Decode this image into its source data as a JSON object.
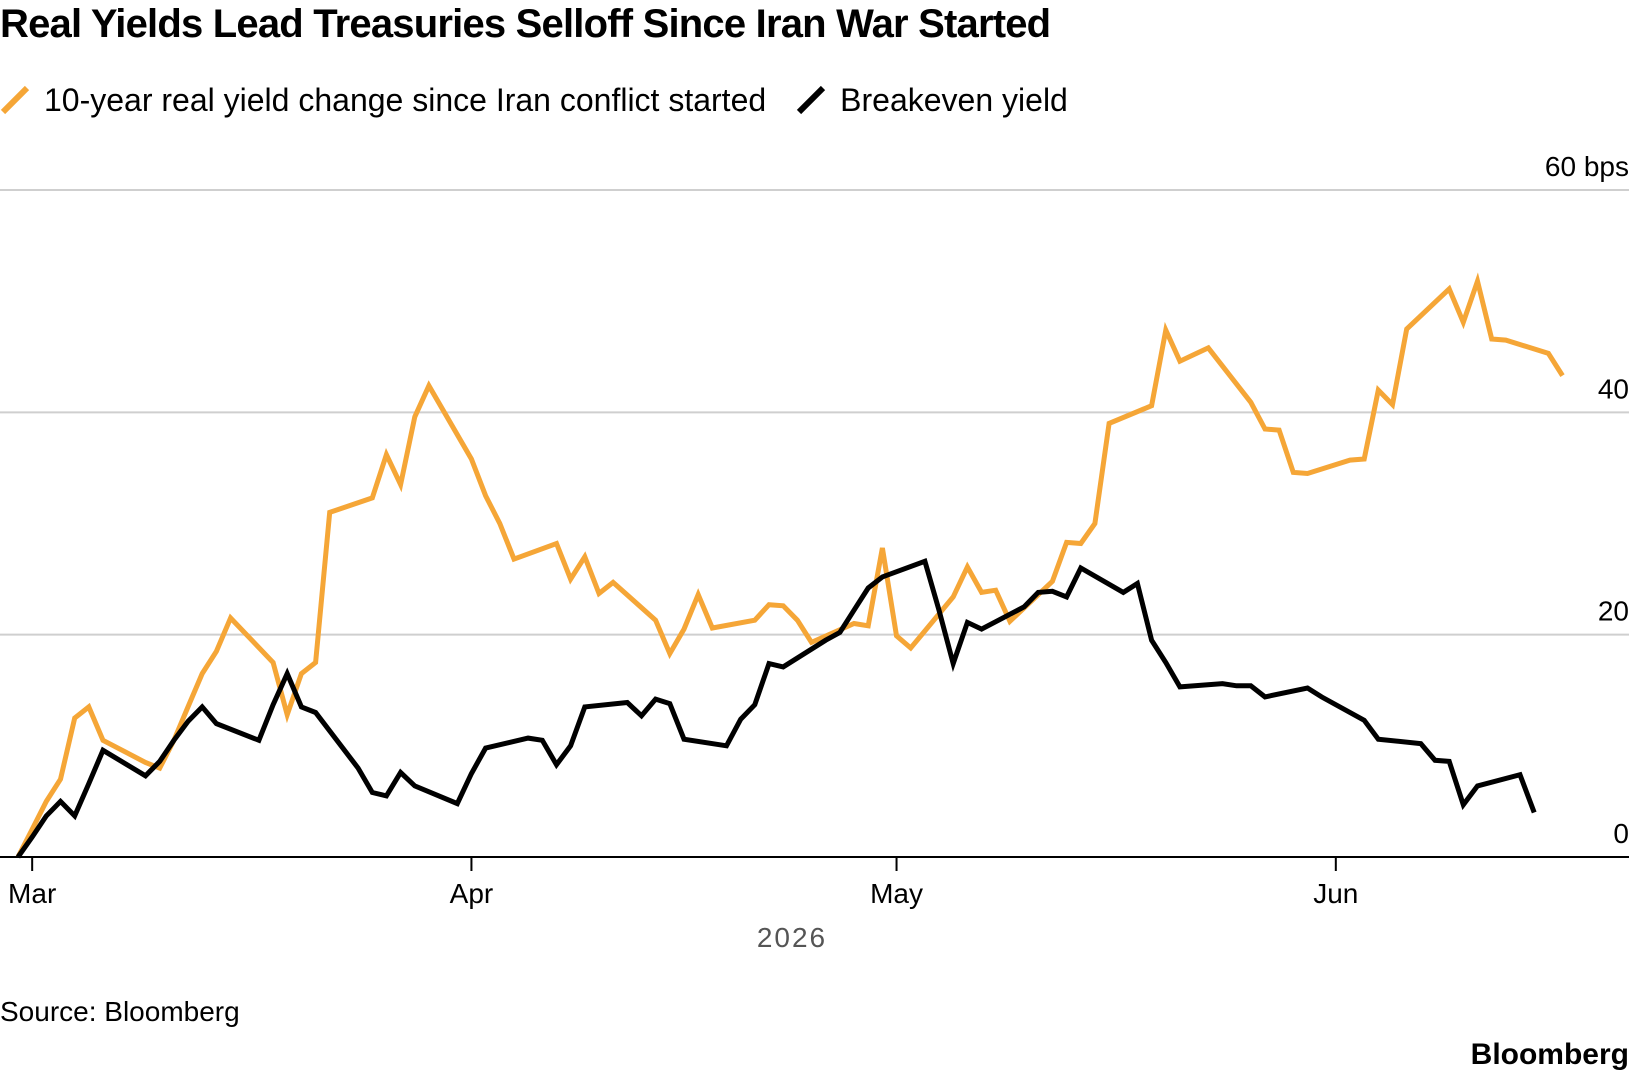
{
  "title": "Real Yields Lead Treasuries Selloff Since Iran War Started",
  "source": "Source: Bloomberg",
  "brand": "Bloomberg",
  "chart_data": {
    "type": "line",
    "title": "Real Yields Lead Treasuries Selloff Since Iran War Started",
    "unit": "bps",
    "y_ticks": [
      {
        "value": 0,
        "label": "0"
      },
      {
        "value": 20,
        "label": "20"
      },
      {
        "value": 40,
        "label": "40"
      },
      {
        "value": 60,
        "label": "60 bps"
      }
    ],
    "ylim": [
      0,
      60
    ],
    "xlim": [
      "2026-02-28",
      "2026-06-15"
    ],
    "x_ticks": [
      {
        "date": "2026-03-01",
        "label": "Mar"
      },
      {
        "date": "2026-04-01",
        "label": "Apr"
      },
      {
        "date": "2026-05-01",
        "label": "May"
      },
      {
        "date": "2026-06-01",
        "label": "Jun"
      }
    ],
    "year_label": "2026",
    "grid": true,
    "legend_position": "top-left",
    "series": [
      {
        "name": "10-year real yield change since Iran conflict started",
        "color": "#f5a637",
        "points": [
          [
            "2026-02-28",
            0
          ],
          [
            "2026-03-01",
            2.5
          ],
          [
            "2026-03-02",
            5.0
          ],
          [
            "2026-03-03",
            7.0
          ],
          [
            "2026-03-04",
            12.5
          ],
          [
            "2026-03-05",
            13.5
          ],
          [
            "2026-03-06",
            10.5
          ],
          [
            "2026-03-09",
            8.5
          ],
          [
            "2026-03-10",
            8.0
          ],
          [
            "2026-03-11",
            10.5
          ],
          [
            "2026-03-12",
            13.5
          ],
          [
            "2026-03-13",
            16.5
          ],
          [
            "2026-03-14",
            18.5
          ],
          [
            "2026-03-15",
            21.5
          ],
          [
            "2026-03-18",
            17.5
          ],
          [
            "2026-03-19",
            12.8
          ],
          [
            "2026-03-20",
            16.5
          ],
          [
            "2026-03-21",
            17.5
          ],
          [
            "2026-03-22",
            31.0
          ],
          [
            "2026-03-25",
            32.3
          ],
          [
            "2026-03-26",
            36.2
          ],
          [
            "2026-03-27",
            33.5
          ],
          [
            "2026-03-28",
            39.6
          ],
          [
            "2026-03-29",
            42.4
          ],
          [
            "2026-04-01",
            35.8
          ],
          [
            "2026-04-02",
            32.5
          ],
          [
            "2026-04-03",
            30.0
          ],
          [
            "2026-04-04",
            26.8
          ],
          [
            "2026-04-07",
            28.2
          ],
          [
            "2026-04-08",
            25.0
          ],
          [
            "2026-04-09",
            27.0
          ],
          [
            "2026-04-10",
            23.7
          ],
          [
            "2026-04-11",
            24.7
          ],
          [
            "2026-04-14",
            21.3
          ],
          [
            "2026-04-15",
            18.3
          ],
          [
            "2026-04-16",
            20.5
          ],
          [
            "2026-04-17",
            23.6
          ],
          [
            "2026-04-18",
            20.6
          ],
          [
            "2026-04-21",
            21.3
          ],
          [
            "2026-04-22",
            22.7
          ],
          [
            "2026-04-23",
            22.6
          ],
          [
            "2026-04-24",
            21.3
          ],
          [
            "2026-04-25",
            19.3
          ],
          [
            "2026-04-28",
            21.0
          ],
          [
            "2026-04-29",
            20.8
          ],
          [
            "2026-04-30",
            27.8
          ],
          [
            "2026-05-01",
            19.9
          ],
          [
            "2026-05-02",
            18.8
          ],
          [
            "2026-05-05",
            23.4
          ],
          [
            "2026-05-06",
            26.1
          ],
          [
            "2026-05-07",
            23.8
          ],
          [
            "2026-05-08",
            24.0
          ],
          [
            "2026-05-09",
            21.2
          ],
          [
            "2026-05-12",
            24.8
          ],
          [
            "2026-05-13",
            28.3
          ],
          [
            "2026-05-14",
            28.2
          ],
          [
            "2026-05-15",
            30.0
          ],
          [
            "2026-05-16",
            39.0
          ],
          [
            "2026-05-19",
            40.6
          ],
          [
            "2026-05-20",
            47.4
          ],
          [
            "2026-05-21",
            44.6
          ],
          [
            "2026-05-22",
            45.2
          ],
          [
            "2026-05-23",
            45.8
          ],
          [
            "2026-05-26",
            40.9
          ],
          [
            "2026-05-27",
            38.5
          ],
          [
            "2026-05-28",
            38.4
          ],
          [
            "2026-05-29",
            34.6
          ],
          [
            "2026-05-30",
            34.5
          ],
          [
            "2026-06-02",
            35.7
          ],
          [
            "2026-06-03",
            35.8
          ],
          [
            "2026-06-04",
            42.0
          ],
          [
            "2026-06-05",
            40.7
          ],
          [
            "2026-06-06",
            47.5
          ],
          [
            "2026-06-09",
            51.1
          ],
          [
            "2026-06-10",
            48.1
          ],
          [
            "2026-06-11",
            51.8
          ],
          [
            "2026-06-12",
            46.6
          ],
          [
            "2026-06-13",
            46.5
          ],
          [
            "2026-06-16",
            45.3
          ],
          [
            "2026-06-17",
            43.3
          ]
        ]
      },
      {
        "name": "Breakeven yield",
        "color": "#000000",
        "points": [
          [
            "2026-02-28",
            0
          ],
          [
            "2026-03-01",
            1.8
          ],
          [
            "2026-03-02",
            3.7
          ],
          [
            "2026-03-03",
            5.0
          ],
          [
            "2026-03-04",
            3.7
          ],
          [
            "2026-03-05",
            6.6
          ],
          [
            "2026-03-06",
            9.6
          ],
          [
            "2026-03-09",
            7.3
          ],
          [
            "2026-03-10",
            8.6
          ],
          [
            "2026-03-11",
            10.5
          ],
          [
            "2026-03-12",
            12.2
          ],
          [
            "2026-03-13",
            13.5
          ],
          [
            "2026-03-14",
            12.0
          ],
          [
            "2026-03-17",
            10.5
          ],
          [
            "2026-03-18",
            13.7
          ],
          [
            "2026-03-19",
            16.5
          ],
          [
            "2026-03-20",
            13.5
          ],
          [
            "2026-03-21",
            13.0
          ],
          [
            "2026-03-24",
            8.0
          ],
          [
            "2026-03-25",
            5.8
          ],
          [
            "2026-03-26",
            5.5
          ],
          [
            "2026-03-27",
            7.6
          ],
          [
            "2026-03-28",
            6.4
          ],
          [
            "2026-03-31",
            4.8
          ],
          [
            "2026-04-01",
            7.5
          ],
          [
            "2026-04-02",
            9.8
          ],
          [
            "2026-04-05",
            10.7
          ],
          [
            "2026-04-06",
            10.5
          ],
          [
            "2026-04-07",
            8.3
          ],
          [
            "2026-04-08",
            10.0
          ],
          [
            "2026-04-09",
            13.5
          ],
          [
            "2026-04-12",
            13.9
          ],
          [
            "2026-04-13",
            12.7
          ],
          [
            "2026-04-14",
            14.2
          ],
          [
            "2026-04-15",
            13.8
          ],
          [
            "2026-04-16",
            10.6
          ],
          [
            "2026-04-19",
            10.0
          ],
          [
            "2026-04-20",
            12.4
          ],
          [
            "2026-04-21",
            13.7
          ],
          [
            "2026-04-22",
            17.4
          ],
          [
            "2026-04-23",
            17.1
          ],
          [
            "2026-04-26",
            19.5
          ],
          [
            "2026-04-27",
            20.2
          ],
          [
            "2026-04-28",
            22.2
          ],
          [
            "2026-04-29",
            24.2
          ],
          [
            "2026-04-30",
            25.2
          ],
          [
            "2026-05-03",
            26.6
          ],
          [
            "2026-05-04",
            22.2
          ],
          [
            "2026-05-05",
            17.4
          ],
          [
            "2026-05-06",
            21.1
          ],
          [
            "2026-05-07",
            20.5
          ],
          [
            "2026-05-10",
            22.5
          ],
          [
            "2026-05-11",
            23.8
          ],
          [
            "2026-05-12",
            23.9
          ],
          [
            "2026-05-13",
            23.4
          ],
          [
            "2026-05-14",
            26.0
          ],
          [
            "2026-05-17",
            23.8
          ],
          [
            "2026-05-18",
            24.6
          ],
          [
            "2026-05-19",
            19.5
          ],
          [
            "2026-05-20",
            17.5
          ],
          [
            "2026-05-21",
            15.3
          ],
          [
            "2026-05-24",
            15.6
          ],
          [
            "2026-05-25",
            15.4
          ],
          [
            "2026-05-26",
            15.4
          ],
          [
            "2026-05-27",
            14.4
          ],
          [
            "2026-05-30",
            15.2
          ],
          [
            "2026-05-31",
            14.4
          ],
          [
            "2026-06-03",
            12.3
          ],
          [
            "2026-06-04",
            10.6
          ],
          [
            "2026-06-07",
            10.2
          ],
          [
            "2026-06-08",
            8.7
          ],
          [
            "2026-06-09",
            8.6
          ],
          [
            "2026-06-10",
            4.7
          ],
          [
            "2026-06-11",
            6.4
          ],
          [
            "2026-06-14",
            7.4
          ],
          [
            "2026-06-15",
            4.0
          ]
        ]
      }
    ]
  }
}
